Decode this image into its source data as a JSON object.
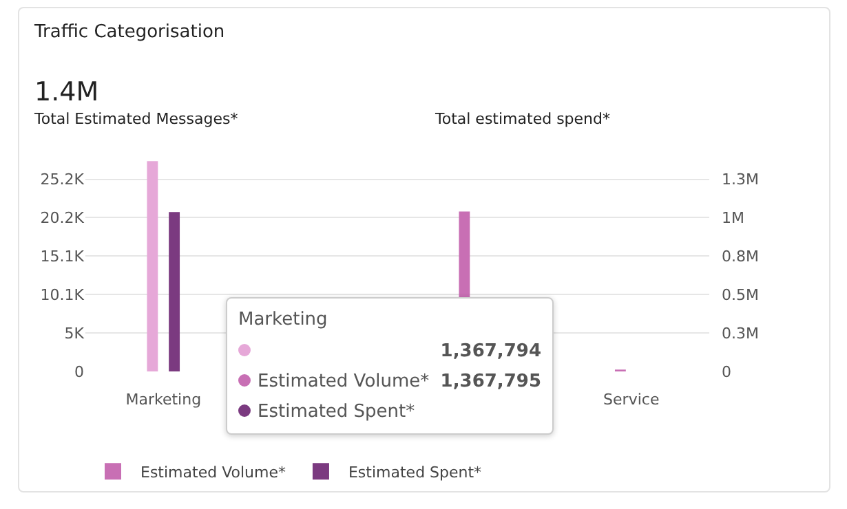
{
  "chart_data": {
    "type": "bar",
    "title": "Traffic Categorisation",
    "annotations": [
      "1.4M",
      "Total Estimated Messages*",
      "Total estimated spend*",
      "Marketing",
      "1,367,794",
      "Estimated Volume*",
      "1,367,795",
      "Estimated Spent*"
    ],
    "categories": [
      "Marketing",
      null,
      null,
      "Service"
    ],
    "series": [
      {
        "name": "Estimated Volume*",
        "color": "#c86fb4",
        "axis": "y2",
        "values": [
          null,
          null,
          1040000,
          12000
        ]
      },
      {
        "name": "Estimated Spent*",
        "color": "#7b3a80",
        "values": [
          20900,
          null,
          null,
          0
        ]
      },
      {
        "color": "#e6a8d8",
        "axis": "y2",
        "values": [
          1367794,
          null,
          0,
          0
        ]
      }
    ],
    "ylim": [
      0,
      27600
    ],
    "yticks": [
      0,
      {
        "value": 5040,
        "label": "5K"
      },
      {
        "value": 10080,
        "label": "10.1K"
      },
      {
        "value": 15120,
        "label": "15.1K"
      },
      {
        "value": 20160,
        "label": "20.2K"
      },
      {
        "value": 25200,
        "label": "25.2K"
      }
    ],
    "y2lim": [
      0,
      1369000
    ],
    "y2ticks": [
      0,
      {
        "value": 250000,
        "label": "0.3M"
      },
      {
        "value": 500000,
        "label": "0.5M"
      },
      {
        "value": 750000,
        "label": "0.8M"
      },
      {
        "value": 1000000,
        "label": "1M"
      },
      {
        "value": 1250000,
        "label": "1.3M"
      }
    ],
    "grid": "y",
    "legend": "bottom left"
  }
}
